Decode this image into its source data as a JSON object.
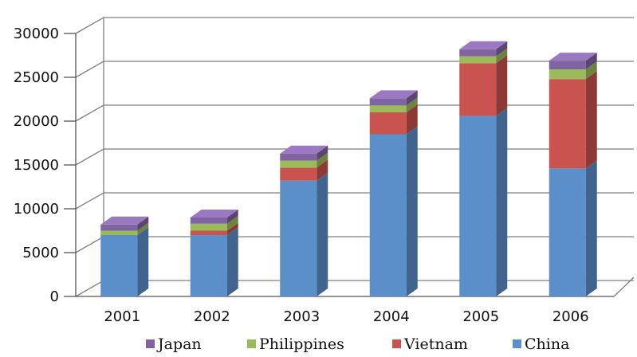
{
  "chart_data": {
    "type": "bar",
    "stacked": true,
    "three_d": true,
    "categories": [
      "2001",
      "2002",
      "2003",
      "2004",
      "2005",
      "2006"
    ],
    "series": [
      {
        "name": "China",
        "color": "#5B8FC9",
        "values": [
          7000,
          7000,
          13200,
          18500,
          20600,
          14600
        ]
      },
      {
        "name": "Vietnam",
        "color": "#C9534F",
        "values": [
          0,
          500,
          1500,
          2500,
          6000,
          10200
        ]
      },
      {
        "name": "Philippines",
        "color": "#9BBB59",
        "values": [
          500,
          800,
          800,
          800,
          800,
          1100
        ]
      },
      {
        "name": "Japan",
        "color": "#8064A2",
        "values": [
          700,
          700,
          800,
          800,
          800,
          1000
        ]
      }
    ],
    "y_ticks": [
      "0",
      "5000",
      "10000",
      "15000",
      "20000",
      "25000",
      "30000"
    ],
    "ylim": [
      0,
      30000
    ],
    "grid": true,
    "legend_position": "bottom",
    "legend_order": [
      "Japan",
      "Philippines",
      "Vietnam",
      "China"
    ]
  }
}
